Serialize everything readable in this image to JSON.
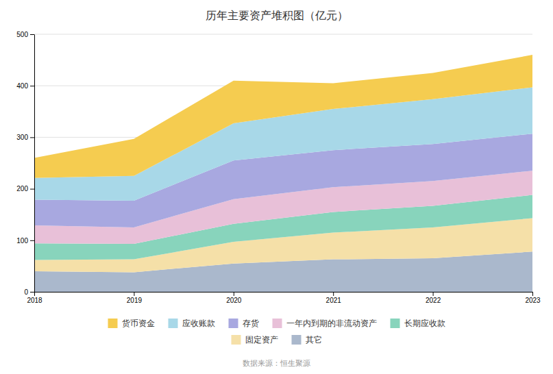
{
  "chart_data": {
    "type": "area",
    "stacked": true,
    "title": "历年主要资产堆积图（亿元）",
    "x": [
      2018,
      2019,
      2020,
      2021,
      2022,
      2023
    ],
    "series": [
      {
        "name": "其它",
        "color": "#aab8cc",
        "values": [
          40,
          38,
          55,
          63,
          65,
          78
        ]
      },
      {
        "name": "固定资产",
        "color": "#f5e0a8",
        "values": [
          22,
          25,
          42,
          52,
          60,
          65
        ]
      },
      {
        "name": "长期应收款",
        "color": "#88d4bc",
        "values": [
          32,
          30,
          35,
          40,
          42,
          45
        ]
      },
      {
        "name": "一年内到期的非流动资产",
        "color": "#e8c0d8",
        "values": [
          35,
          32,
          48,
          48,
          48,
          47
        ]
      },
      {
        "name": "存货",
        "color": "#a8a8e0",
        "values": [
          50,
          52,
          75,
          72,
          72,
          72
        ]
      },
      {
        "name": "应收账款",
        "color": "#a8d8e8",
        "values": [
          42,
          48,
          72,
          80,
          87,
          90
        ]
      },
      {
        "name": "货币资金",
        "color": "#f5cc50",
        "values": [
          39,
          72,
          83,
          50,
          51,
          63
        ]
      }
    ],
    "xlim": [
      2018,
      2023
    ],
    "xticks": [
      2018,
      2019,
      2020,
      2021,
      2022,
      2023
    ],
    "ylim": [
      0,
      500
    ],
    "yticks": [
      0,
      100,
      200,
      300,
      400,
      500
    ],
    "grid": true,
    "legend": "bottom",
    "annotations": [
      "数据来源：恒生聚源"
    ]
  }
}
